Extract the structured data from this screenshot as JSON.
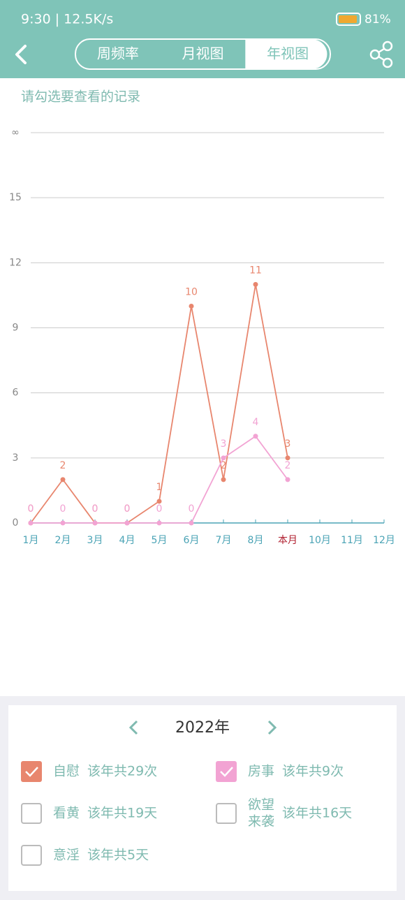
{
  "status_bar": {
    "time_speed": "9:30 | 12.5K/s",
    "battery": "81%"
  },
  "nav": {
    "tabs": [
      "周频率",
      "月视图",
      "年视图"
    ],
    "selected": 2
  },
  "prompt": "请勾选要查看的记录",
  "chart_data": {
    "type": "line",
    "categories": [
      "1月",
      "2月",
      "3月",
      "4月",
      "5月",
      "6月",
      "7月",
      "8月",
      "本月",
      "10月",
      "11月",
      "12月"
    ],
    "current_category": 8,
    "ylim": [
      0,
      18
    ],
    "yticks": [
      0,
      3,
      6,
      9,
      12,
      15,
      {
        "value": 18,
        "label": "∞"
      }
    ],
    "grid": true,
    "series": [
      {
        "name": "自慰",
        "color": "#e8866e",
        "values": [
          0,
          2,
          0,
          0,
          1,
          10,
          2,
          11,
          3,
          null,
          null,
          null
        ],
        "summary": "该年共29次",
        "checked": true
      },
      {
        "name": "房事",
        "color": "#f2a3d3",
        "values": [
          0,
          0,
          0,
          0,
          0,
          0,
          3,
          4,
          2,
          null,
          null,
          null
        ],
        "summary": "该年共9次",
        "checked": true
      }
    ]
  },
  "panel": {
    "year": "2022年",
    "other_records": [
      {
        "name_lines": [
          "看黄"
        ],
        "summary": "该年共19天",
        "checked": false
      },
      {
        "name_lines": [
          "欲望",
          "来袭"
        ],
        "summary": "该年共16天",
        "checked": false
      },
      {
        "name_lines": [
          "意淫"
        ],
        "summary": "该年共5天",
        "checked": false
      }
    ]
  }
}
